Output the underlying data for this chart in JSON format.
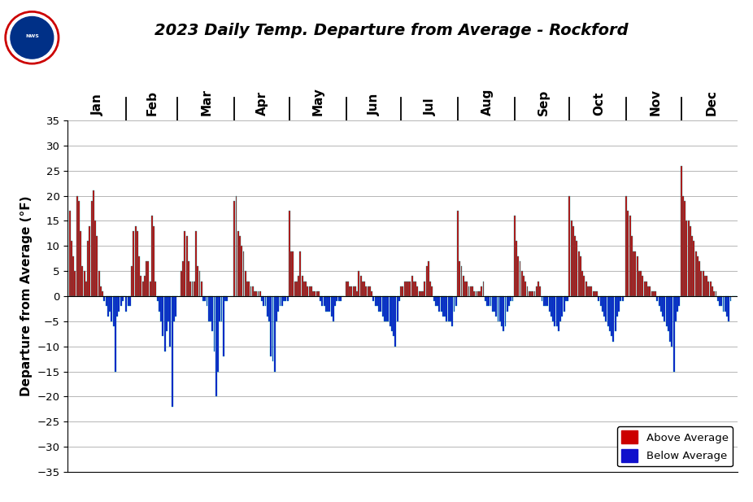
{
  "title": "2023 Daily Temp. Departure from Average - Rockford",
  "ylabel": "Departure from Average (°F)",
  "ylim": [
    -35,
    35
  ],
  "yticks": [
    -35,
    -30,
    -25,
    -20,
    -15,
    -10,
    -5,
    0,
    5,
    10,
    15,
    20,
    25,
    30,
    35
  ],
  "color_above": "#CC0000",
  "color_below": "#1010CC",
  "color_outline": "#00AAAA",
  "months": [
    "Jan",
    "Feb",
    "Mar",
    "Apr",
    "May",
    "Jun",
    "Jul",
    "Aug",
    "Sep",
    "Oct",
    "Nov",
    "Dec"
  ],
  "month_days": [
    31,
    28,
    31,
    30,
    31,
    30,
    31,
    31,
    30,
    31,
    30,
    31
  ],
  "jan": [
    17,
    11,
    8,
    5,
    20,
    19,
    13,
    6,
    5,
    3,
    11,
    14,
    19,
    21,
    15,
    12,
    5,
    2,
    1,
    -1,
    -2,
    -4,
    -3,
    -5,
    -6,
    -15,
    -4,
    -3,
    -2,
    -1,
    0
  ],
  "feb": [
    -3,
    -2,
    -2,
    6,
    13,
    14,
    13,
    8,
    4,
    3,
    4,
    7,
    7,
    3,
    16,
    14,
    3,
    -1,
    -3,
    -5,
    -8,
    -11,
    -7,
    -5,
    -10,
    -22,
    -5,
    -4
  ],
  "mar": [
    0,
    0,
    5,
    7,
    13,
    12,
    7,
    3,
    3,
    3,
    13,
    6,
    5,
    3,
    -1,
    -1,
    -2,
    -5,
    -5,
    -7,
    -11,
    -20,
    -15,
    -5,
    -5,
    -12,
    -1,
    -1,
    0,
    0,
    0
  ],
  "apr": [
    19,
    20,
    13,
    12,
    10,
    9,
    5,
    3,
    3,
    2,
    2,
    1,
    1,
    1,
    1,
    -1,
    -2,
    -2,
    -4,
    -5,
    -12,
    -13,
    -15,
    -5,
    -3,
    -2,
    -2,
    -1,
    -1,
    -1
  ],
  "may": [
    17,
    9,
    9,
    3,
    3,
    4,
    9,
    4,
    3,
    3,
    2,
    2,
    2,
    1,
    1,
    1,
    1,
    -1,
    -2,
    -2,
    -3,
    -3,
    -3,
    -4,
    -5,
    -2,
    -1,
    -1,
    -1,
    0,
    0
  ],
  "jun": [
    3,
    3,
    2,
    2,
    2,
    2,
    1,
    5,
    4,
    3,
    3,
    2,
    2,
    2,
    1,
    -1,
    -2,
    -2,
    -3,
    -3,
    -4,
    -5,
    -5,
    -5,
    -6,
    -7,
    -8,
    -10,
    -5,
    -1
  ],
  "jul": [
    2,
    2,
    3,
    3,
    3,
    3,
    4,
    3,
    3,
    2,
    1,
    1,
    1,
    3,
    6,
    7,
    3,
    2,
    -1,
    -2,
    -2,
    -3,
    -3,
    -4,
    -4,
    -5,
    -5,
    -5,
    -6,
    -3,
    -2
  ],
  "aug": [
    17,
    7,
    6,
    4,
    3,
    3,
    2,
    2,
    2,
    1,
    1,
    1,
    1,
    2,
    3,
    -1,
    -2,
    -2,
    -2,
    -3,
    -3,
    -4,
    -5,
    -5,
    -6,
    -7,
    -6,
    -3,
    -2,
    -1,
    -1
  ],
  "sep": [
    16,
    11,
    8,
    7,
    5,
    4,
    3,
    2,
    1,
    1,
    1,
    1,
    2,
    3,
    2,
    -1,
    -2,
    -2,
    -2,
    -3,
    -4,
    -5,
    -6,
    -6,
    -7,
    -5,
    -4,
    -3,
    -1,
    -1
  ],
  "oct": [
    20,
    15,
    14,
    12,
    11,
    9,
    8,
    5,
    4,
    3,
    2,
    2,
    2,
    1,
    1,
    1,
    -1,
    -2,
    -3,
    -4,
    -5,
    -6,
    -7,
    -8,
    -9,
    -7,
    -4,
    -3,
    -1,
    -1,
    0
  ],
  "nov": [
    20,
    17,
    16,
    12,
    9,
    9,
    8,
    5,
    5,
    4,
    3,
    3,
    2,
    2,
    1,
    1,
    1,
    -1,
    -2,
    -3,
    -4,
    -5,
    -6,
    -7,
    -9,
    -10,
    -15,
    -5,
    -3,
    -2
  ],
  "dec": [
    26,
    20,
    19,
    15,
    15,
    14,
    12,
    11,
    9,
    8,
    7,
    5,
    5,
    4,
    4,
    3,
    3,
    2,
    1,
    1,
    -1,
    -2,
    -2,
    -3,
    -3,
    -4,
    -5,
    -1,
    0,
    0,
    0
  ]
}
